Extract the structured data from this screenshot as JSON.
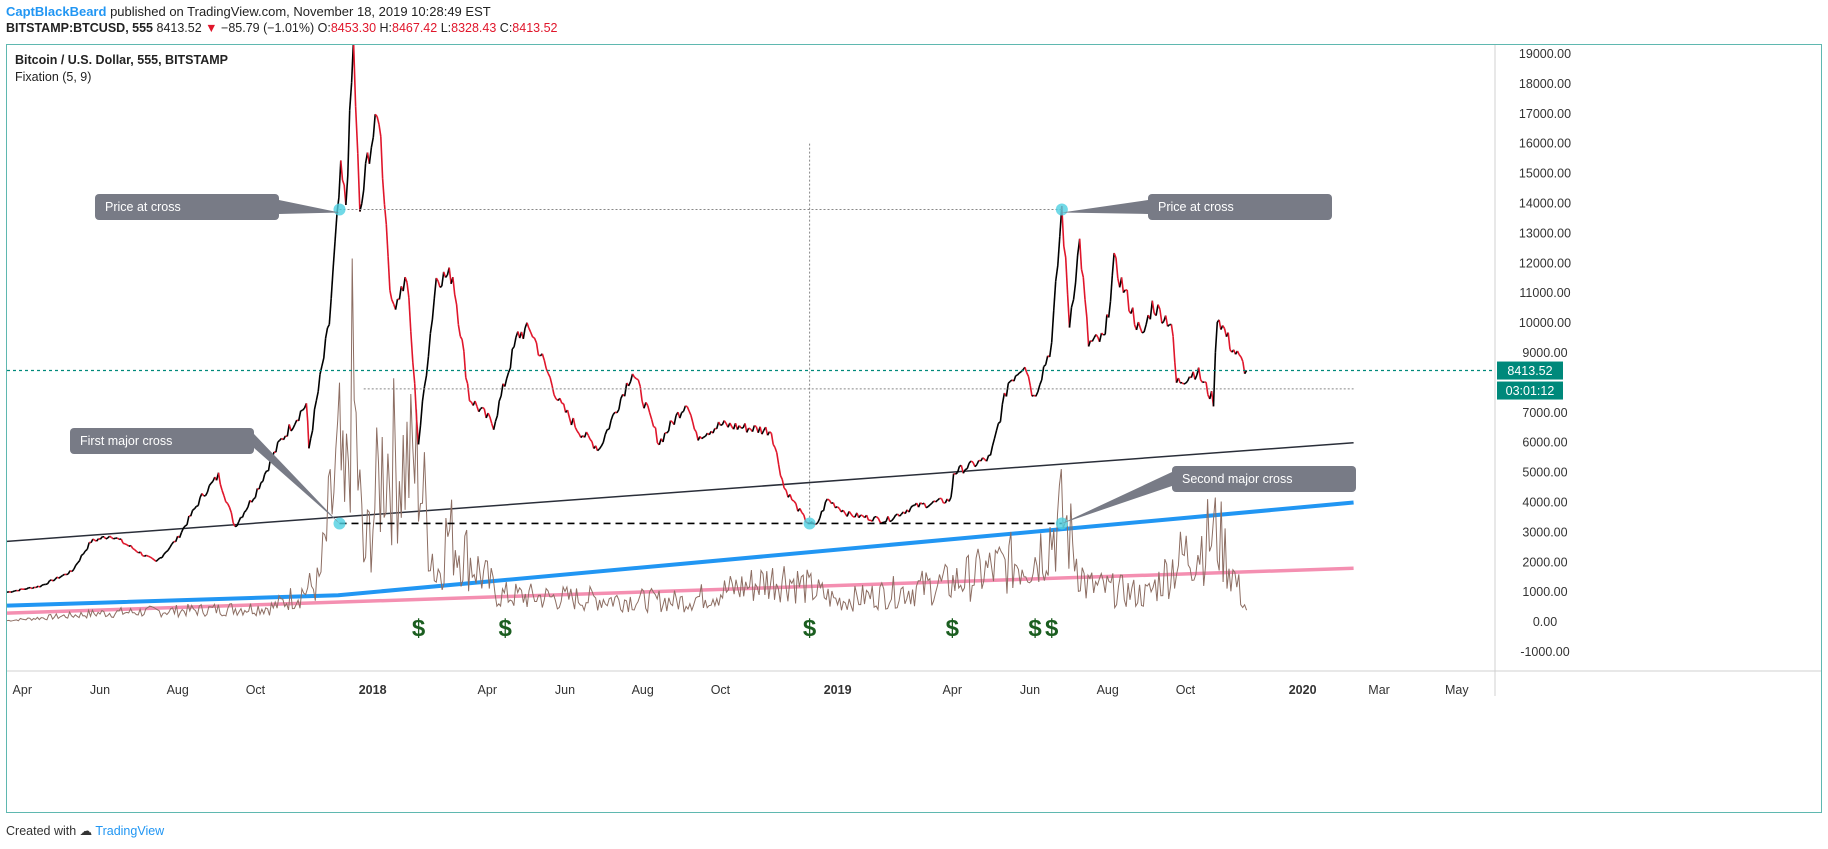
{
  "header": {
    "author": "CaptBlackBeard",
    "published": "published on TradingView.com, November 18, 2019 10:28:49 EST",
    "symbol": "BITSTAMP:BTCUSD, 555",
    "last": "8413.52",
    "change_arrow": "▼",
    "change": "−85.79 (−1.01%)",
    "o_label": "O:",
    "o": "8453.30",
    "h_label": "H:",
    "h": "8467.42",
    "l_label": "L:",
    "l": "8328.43",
    "c_label": "C:",
    "c": "8413.52"
  },
  "legend": {
    "title": "Bitcoin / U.S. Dollar, 555, BITSTAMP",
    "indicator": "Fixation (5, 9)"
  },
  "footer": {
    "created_with": "Created with",
    "brand": "TradingView"
  },
  "colors": {
    "up": "#000000",
    "down": "#e0162b",
    "blue_line": "#2196f3",
    "pink_line": "#f48fb1",
    "black_line": "#2a2e39",
    "indicator": "#8d6e63",
    "dollar": "#1b5e20",
    "price_line": "#00897b"
  },
  "chart_data": {
    "type": "line",
    "ylim": [
      -1300,
      19300
    ],
    "y_ticks": [
      "19000.00",
      "18000.00",
      "17000.00",
      "16000.00",
      "15000.00",
      "14000.00",
      "13000.00",
      "12000.00",
      "11000.00",
      "10000.00",
      "9000.00",
      "7000.00",
      "6000.00",
      "5000.00",
      "4000.00",
      "3000.00",
      "2000.00",
      "1000.00",
      "0.00",
      "-1000.00"
    ],
    "x_range": [
      "2017-03-20",
      "2020-05-31"
    ],
    "x_ticks": [
      {
        "label": "Apr",
        "date": "2017-04-01"
      },
      {
        "label": "Jun",
        "date": "2017-06-01"
      },
      {
        "label": "Aug",
        "date": "2017-08-01"
      },
      {
        "label": "Oct",
        "date": "2017-10-01"
      },
      {
        "label": "2018",
        "date": "2018-01-01",
        "bold": true
      },
      {
        "label": "Apr",
        "date": "2018-04-01"
      },
      {
        "label": "Jun",
        "date": "2018-06-01"
      },
      {
        "label": "Aug",
        "date": "2018-08-01"
      },
      {
        "label": "Oct",
        "date": "2018-10-01"
      },
      {
        "label": "2019",
        "date": "2019-01-01",
        "bold": true
      },
      {
        "label": "Apr",
        "date": "2019-04-01"
      },
      {
        "label": "Jun",
        "date": "2019-06-01"
      },
      {
        "label": "Aug",
        "date": "2019-08-01"
      },
      {
        "label": "Oct",
        "date": "2019-10-01"
      },
      {
        "label": "2020",
        "date": "2020-01-01",
        "bold": true
      },
      {
        "label": "Mar",
        "date": "2020-03-01"
      },
      {
        "label": "May",
        "date": "2020-05-01"
      }
    ],
    "price_series": {
      "name": "BTCUSD",
      "points": [
        [
          "2017-03-20",
          1000
        ],
        [
          "2017-04-15",
          1200
        ],
        [
          "2017-05-10",
          1700
        ],
        [
          "2017-05-25",
          2700
        ],
        [
          "2017-06-10",
          2900
        ],
        [
          "2017-07-15",
          2000
        ],
        [
          "2017-08-01",
          2800
        ],
        [
          "2017-08-20",
          4200
        ],
        [
          "2017-09-02",
          4900
        ],
        [
          "2017-09-15",
          3200
        ],
        [
          "2017-10-01",
          4300
        ],
        [
          "2017-10-20",
          6000
        ],
        [
          "2017-11-10",
          7300
        ],
        [
          "2017-11-12",
          5800
        ],
        [
          "2017-11-28",
          10000
        ],
        [
          "2017-12-07",
          15000
        ],
        [
          "2017-12-11",
          14000
        ],
        [
          "2017-12-17",
          19300
        ],
        [
          "2017-12-22",
          13500
        ],
        [
          "2017-12-28",
          15500
        ],
        [
          "2018-01-06",
          17000
        ],
        [
          "2018-01-16",
          10500
        ],
        [
          "2018-01-28",
          11500
        ],
        [
          "2018-02-06",
          6000
        ],
        [
          "2018-02-20",
          11500
        ],
        [
          "2018-03-05",
          11600
        ],
        [
          "2018-03-18",
          7500
        ],
        [
          "2018-04-06",
          6600
        ],
        [
          "2018-04-25",
          9600
        ],
        [
          "2018-05-05",
          9800
        ],
        [
          "2018-05-28",
          7300
        ],
        [
          "2018-06-12",
          6400
        ],
        [
          "2018-06-28",
          5800
        ],
        [
          "2018-07-24",
          8400
        ],
        [
          "2018-08-14",
          6000
        ],
        [
          "2018-09-05",
          7400
        ],
        [
          "2018-09-12",
          6200
        ],
        [
          "2018-10-01",
          6600
        ],
        [
          "2018-11-10",
          6400
        ],
        [
          "2018-11-20",
          4500
        ],
        [
          "2018-12-07",
          3400
        ],
        [
          "2018-12-15",
          3200
        ],
        [
          "2018-12-24",
          4100
        ],
        [
          "2019-01-10",
          3600
        ],
        [
          "2019-02-08",
          3400
        ],
        [
          "2019-03-01",
          3850
        ],
        [
          "2019-03-31",
          4100
        ],
        [
          "2019-04-02",
          5000
        ],
        [
          "2019-05-01",
          5500
        ],
        [
          "2019-05-15",
          8000
        ],
        [
          "2019-05-28",
          8700
        ],
        [
          "2019-06-04",
          7500
        ],
        [
          "2019-06-18",
          9300
        ],
        [
          "2019-06-26",
          13800
        ],
        [
          "2019-07-02",
          10000
        ],
        [
          "2019-07-10",
          12700
        ],
        [
          "2019-07-17",
          9300
        ],
        [
          "2019-07-30",
          9500
        ],
        [
          "2019-08-06",
          12000
        ],
        [
          "2019-08-28",
          9500
        ],
        [
          "2019-09-05",
          10600
        ],
        [
          "2019-09-20",
          10000
        ],
        [
          "2019-09-24",
          8000
        ],
        [
          "2019-10-10",
          8400
        ],
        [
          "2019-10-23",
          7400
        ],
        [
          "2019-10-26",
          10300
        ],
        [
          "2019-11-05",
          9300
        ],
        [
          "2019-11-18",
          8413.52
        ]
      ]
    },
    "indicator_series": {
      "name": "Fixation (5, 9)",
      "points": [
        [
          "2017-03-20",
          50
        ],
        [
          "2017-06-01",
          300
        ],
        [
          "2017-08-15",
          400
        ],
        [
          "2017-10-15",
          500
        ],
        [
          "2017-11-20",
          1300
        ],
        [
          "2017-12-06",
          5500
        ],
        [
          "2017-12-10",
          3500
        ],
        [
          "2017-12-16",
          8000
        ],
        [
          "2017-12-25",
          2000
        ],
        [
          "2018-01-10",
          5500
        ],
        [
          "2018-02-06",
          5200
        ],
        [
          "2018-02-20",
          1500
        ],
        [
          "2018-03-01",
          3000
        ],
        [
          "2018-04-10",
          900
        ],
        [
          "2018-06-01",
          800
        ],
        [
          "2018-09-01",
          700
        ],
        [
          "2018-11-20",
          1500
        ],
        [
          "2019-01-01",
          700
        ],
        [
          "2019-03-31",
          1300
        ],
        [
          "2019-05-20",
          2000
        ],
        [
          "2019-06-05",
          2200
        ],
        [
          "2019-06-27",
          3500
        ],
        [
          "2019-07-15",
          1200
        ],
        [
          "2019-09-01",
          900
        ],
        [
          "2019-09-24",
          2000
        ],
        [
          "2019-10-26",
          3000
        ],
        [
          "2019-11-18",
          400
        ]
      ]
    },
    "trend_lines": [
      {
        "name": "black",
        "from": [
          "2017-03-20",
          2700
        ],
        "to": [
          "2020-02-10",
          6000
        ]
      },
      {
        "name": "blue",
        "from": [
          "2017-03-20",
          550
        ],
        "to": [
          "2017-12-05",
          900
        ],
        "then": [
          "2020-02-10",
          4000
        ]
      },
      {
        "name": "pink",
        "from": [
          "2017-03-20",
          300
        ],
        "to": [
          "2020-02-10",
          1800
        ]
      }
    ],
    "current_price": {
      "value": 8413.52,
      "label": "8413.52",
      "countdown": "03:01:12"
    },
    "annotations": [
      {
        "name": "callout-price-at-cross-left",
        "text": "Price at cross",
        "anchor": [
          "2017-12-06",
          13700
        ]
      },
      {
        "name": "callout-price-at-cross-right",
        "text": "Price at cross",
        "anchor": [
          "2019-06-26",
          13700
        ]
      },
      {
        "name": "callout-first-major-cross",
        "text": "First major cross",
        "anchor": [
          "2017-12-06",
          3300
        ]
      },
      {
        "name": "callout-second-major-cross",
        "text": "Second major cross",
        "anchor": [
          "2019-06-26",
          3300
        ]
      }
    ],
    "dollar_signs": [
      "2018-02-06",
      "2018-04-15",
      "2018-12-10",
      "2019-04-01",
      "2019-06-05",
      "2019-06-18"
    ],
    "dollar_text": "$",
    "grid": false
  }
}
